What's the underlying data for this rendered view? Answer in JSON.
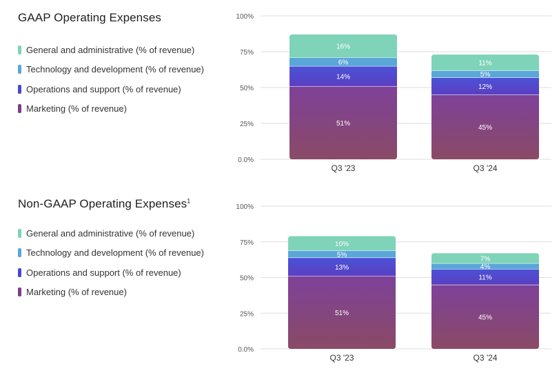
{
  "colors": {
    "general_admin": "#7fd3b8",
    "technology": "#5aa6d8",
    "operations": "#4b46cf",
    "marketing": "#7b3f87",
    "grid": "#dddddd",
    "text_axis": "#555555",
    "bar_label": "#ffffff"
  },
  "legend_labels": [
    "General and administrative (% of revenue)",
    "Technology and development (% of revenue)",
    "Operations and support (% of revenue)",
    "Marketing (% of revenue)"
  ],
  "chart_data": [
    {
      "type": "bar",
      "stacked": true,
      "title": "GAAP Operating Expenses",
      "footnote_mark": "",
      "categories": [
        "Q3 '23",
        "Q3 '24"
      ],
      "series": [
        {
          "name": "Marketing (% of revenue)",
          "values": [
            51,
            45
          ],
          "labels": [
            "51%",
            "45%"
          ]
        },
        {
          "name": "Operations and support (% of revenue)",
          "values": [
            14,
            12
          ],
          "labels": [
            "14%",
            "12%"
          ]
        },
        {
          "name": "Technology and development (% of revenue)",
          "values": [
            6,
            5
          ],
          "labels": [
            "6%",
            "5%"
          ]
        },
        {
          "name": "General and administrative (% of revenue)",
          "values": [
            16,
            11
          ],
          "labels": [
            "16%",
            "11%"
          ]
        }
      ],
      "ylim": [
        0,
        100
      ],
      "yticks": [
        0,
        25,
        50,
        75,
        100
      ],
      "ytick_labels": [
        "0.0%",
        "25%",
        "50%",
        "75%",
        "100%"
      ],
      "grid": true,
      "legend_position": "left"
    },
    {
      "type": "bar",
      "stacked": true,
      "title": "Non-GAAP Operating Expenses",
      "footnote_mark": "1",
      "categories": [
        "Q3 '23",
        "Q3 '24"
      ],
      "series": [
        {
          "name": "Marketing (% of revenue)",
          "values": [
            51,
            45
          ],
          "labels": [
            "51%",
            "45%"
          ]
        },
        {
          "name": "Operations and support (% of revenue)",
          "values": [
            13,
            11
          ],
          "labels": [
            "13%",
            "11%"
          ]
        },
        {
          "name": "Technology and development (% of revenue)",
          "values": [
            5,
            4
          ],
          "labels": [
            "5%",
            "4%"
          ]
        },
        {
          "name": "General and administrative (% of revenue)",
          "values": [
            10,
            7
          ],
          "labels": [
            "10%",
            "7%"
          ]
        }
      ],
      "ylim": [
        0,
        100
      ],
      "yticks": [
        0,
        25,
        50,
        75,
        100
      ],
      "ytick_labels": [
        "0.0%",
        "25%",
        "50%",
        "75%",
        "100%"
      ],
      "grid": true,
      "legend_position": "left"
    }
  ]
}
